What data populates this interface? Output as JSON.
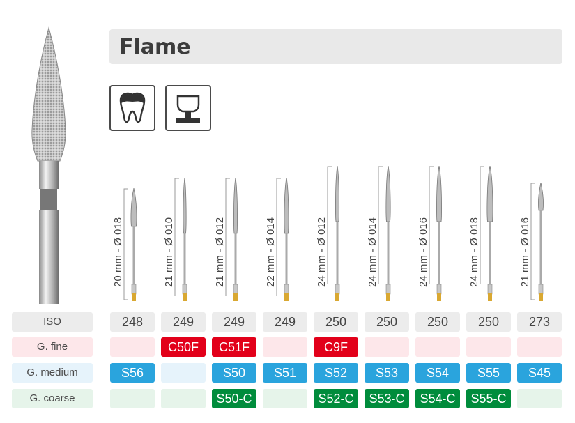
{
  "title": "Flame",
  "icons": [
    "tooth-crown-icon",
    "crown-preparation-icon"
  ],
  "row_labels": {
    "iso": "ISO",
    "fine": "G. fine",
    "medium": "G. medium",
    "coarse": "G. coarse"
  },
  "columns": [
    {
      "dimension": "20 mm - Ø 018",
      "iso": "248",
      "fine": "",
      "medium": "S56",
      "coarse": ""
    },
    {
      "dimension": "21 mm - Ø 010",
      "iso": "249",
      "fine": "C50F",
      "medium": "",
      "coarse": ""
    },
    {
      "dimension": "21 mm - Ø 012",
      "iso": "249",
      "fine": "C51F",
      "medium": "S50",
      "coarse": "S50-C"
    },
    {
      "dimension": "22 mm - Ø 014",
      "iso": "249",
      "fine": "",
      "medium": "S51",
      "coarse": ""
    },
    {
      "dimension": "24 mm - Ø 012",
      "iso": "250",
      "fine": "C9F",
      "medium": "S52",
      "coarse": "S52-C"
    },
    {
      "dimension": "24 mm - Ø 014",
      "iso": "250",
      "fine": "",
      "medium": "S53",
      "coarse": "S53-C"
    },
    {
      "dimension": "24 mm - Ø 016",
      "iso": "250",
      "fine": "",
      "medium": "S54",
      "coarse": "S54-C"
    },
    {
      "dimension": "24 mm - Ø 018",
      "iso": "250",
      "fine": "",
      "medium": "S55",
      "coarse": "S55-C"
    },
    {
      "dimension": "21 mm - Ø 016",
      "iso": "273",
      "fine": "",
      "medium": "S45",
      "coarse": ""
    }
  ],
  "colors": {
    "fine": "#e2001a",
    "medium": "#2aa4dd",
    "coarse": "#008c3c",
    "title_bg": "#e9e9e9"
  }
}
